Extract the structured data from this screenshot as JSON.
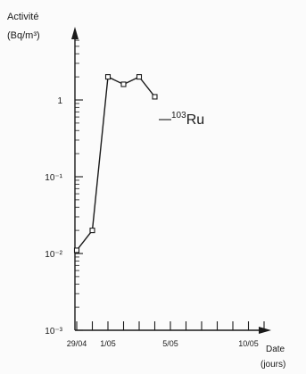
{
  "chart_data": {
    "type": "line",
    "ylabel_line1": "Activité",
    "ylabel_line2": "(Bq/m³)",
    "xlabel_line1": "Date",
    "xlabel_line2": "(jours)",
    "yscale": "log",
    "ylim": [
      0.001,
      10
    ],
    "y_ticks": [
      {
        "value": 0.001,
        "label": "10⁻³"
      },
      {
        "value": 0.01,
        "label": "10⁻²"
      },
      {
        "value": 0.1,
        "label": "10⁻¹"
      },
      {
        "value": 1,
        "label": "1"
      }
    ],
    "x_ticks": [
      {
        "day": 0,
        "label": "29/04"
      },
      {
        "day": 2,
        "label": "1/05"
      },
      {
        "day": 6,
        "label": "5/05"
      },
      {
        "day": 11,
        "label": "10/05"
      }
    ],
    "xlim": [
      0,
      12
    ],
    "series": [
      {
        "name": "¹⁰³Ru",
        "points": [
          {
            "x": "29/04",
            "y": 0.011
          },
          {
            "x": "30/04",
            "y": 0.02
          },
          {
            "x": "1/05",
            "y": 2.0
          },
          {
            "x": "2/05",
            "y": 1.6
          },
          {
            "x": "3/05",
            "y": 2.0
          },
          {
            "x": "4/05",
            "y": 1.1
          }
        ]
      }
    ],
    "series_label_mass": "103",
    "series_label_symbol": "Ru",
    "grid": false,
    "legend": "none"
  }
}
